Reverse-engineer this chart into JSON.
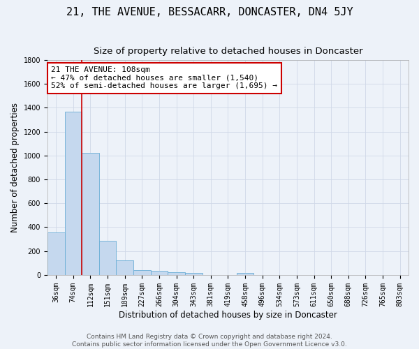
{
  "title": "21, THE AVENUE, BESSACARR, DONCASTER, DN4 5JY",
  "subtitle": "Size of property relative to detached houses in Doncaster",
  "xlabel": "Distribution of detached houses by size in Doncaster",
  "ylabel": "Number of detached properties",
  "categories": [
    "36sqm",
    "74sqm",
    "112sqm",
    "151sqm",
    "189sqm",
    "227sqm",
    "266sqm",
    "304sqm",
    "343sqm",
    "381sqm",
    "419sqm",
    "458sqm",
    "496sqm",
    "534sqm",
    "573sqm",
    "611sqm",
    "650sqm",
    "688sqm",
    "726sqm",
    "765sqm",
    "803sqm"
  ],
  "values": [
    355,
    1365,
    1020,
    285,
    125,
    42,
    33,
    25,
    18,
    0,
    0,
    18,
    0,
    0,
    0,
    0,
    0,
    0,
    0,
    0,
    0
  ],
  "bar_color": "#c5d8ee",
  "bar_edge_color": "#6baed6",
  "ylim": [
    0,
    1800
  ],
  "red_line_x": 1.5,
  "annotation_line1": "21 THE AVENUE: 108sqm",
  "annotation_line2": "← 47% of detached houses are smaller (1,540)",
  "annotation_line3": "52% of semi-detached houses are larger (1,695) →",
  "annotation_box_color": "#ffffff",
  "annotation_border_color": "#cc0000",
  "footer_text": "Contains HM Land Registry data © Crown copyright and database right 2024.\nContains public sector information licensed under the Open Government Licence v3.0.",
  "background_color": "#edf2f9",
  "grid_color": "#d0d8e8",
  "title_fontsize": 11,
  "subtitle_fontsize": 9.5,
  "axis_label_fontsize": 8.5,
  "tick_fontsize": 7,
  "annotation_fontsize": 8,
  "footer_fontsize": 6.5
}
